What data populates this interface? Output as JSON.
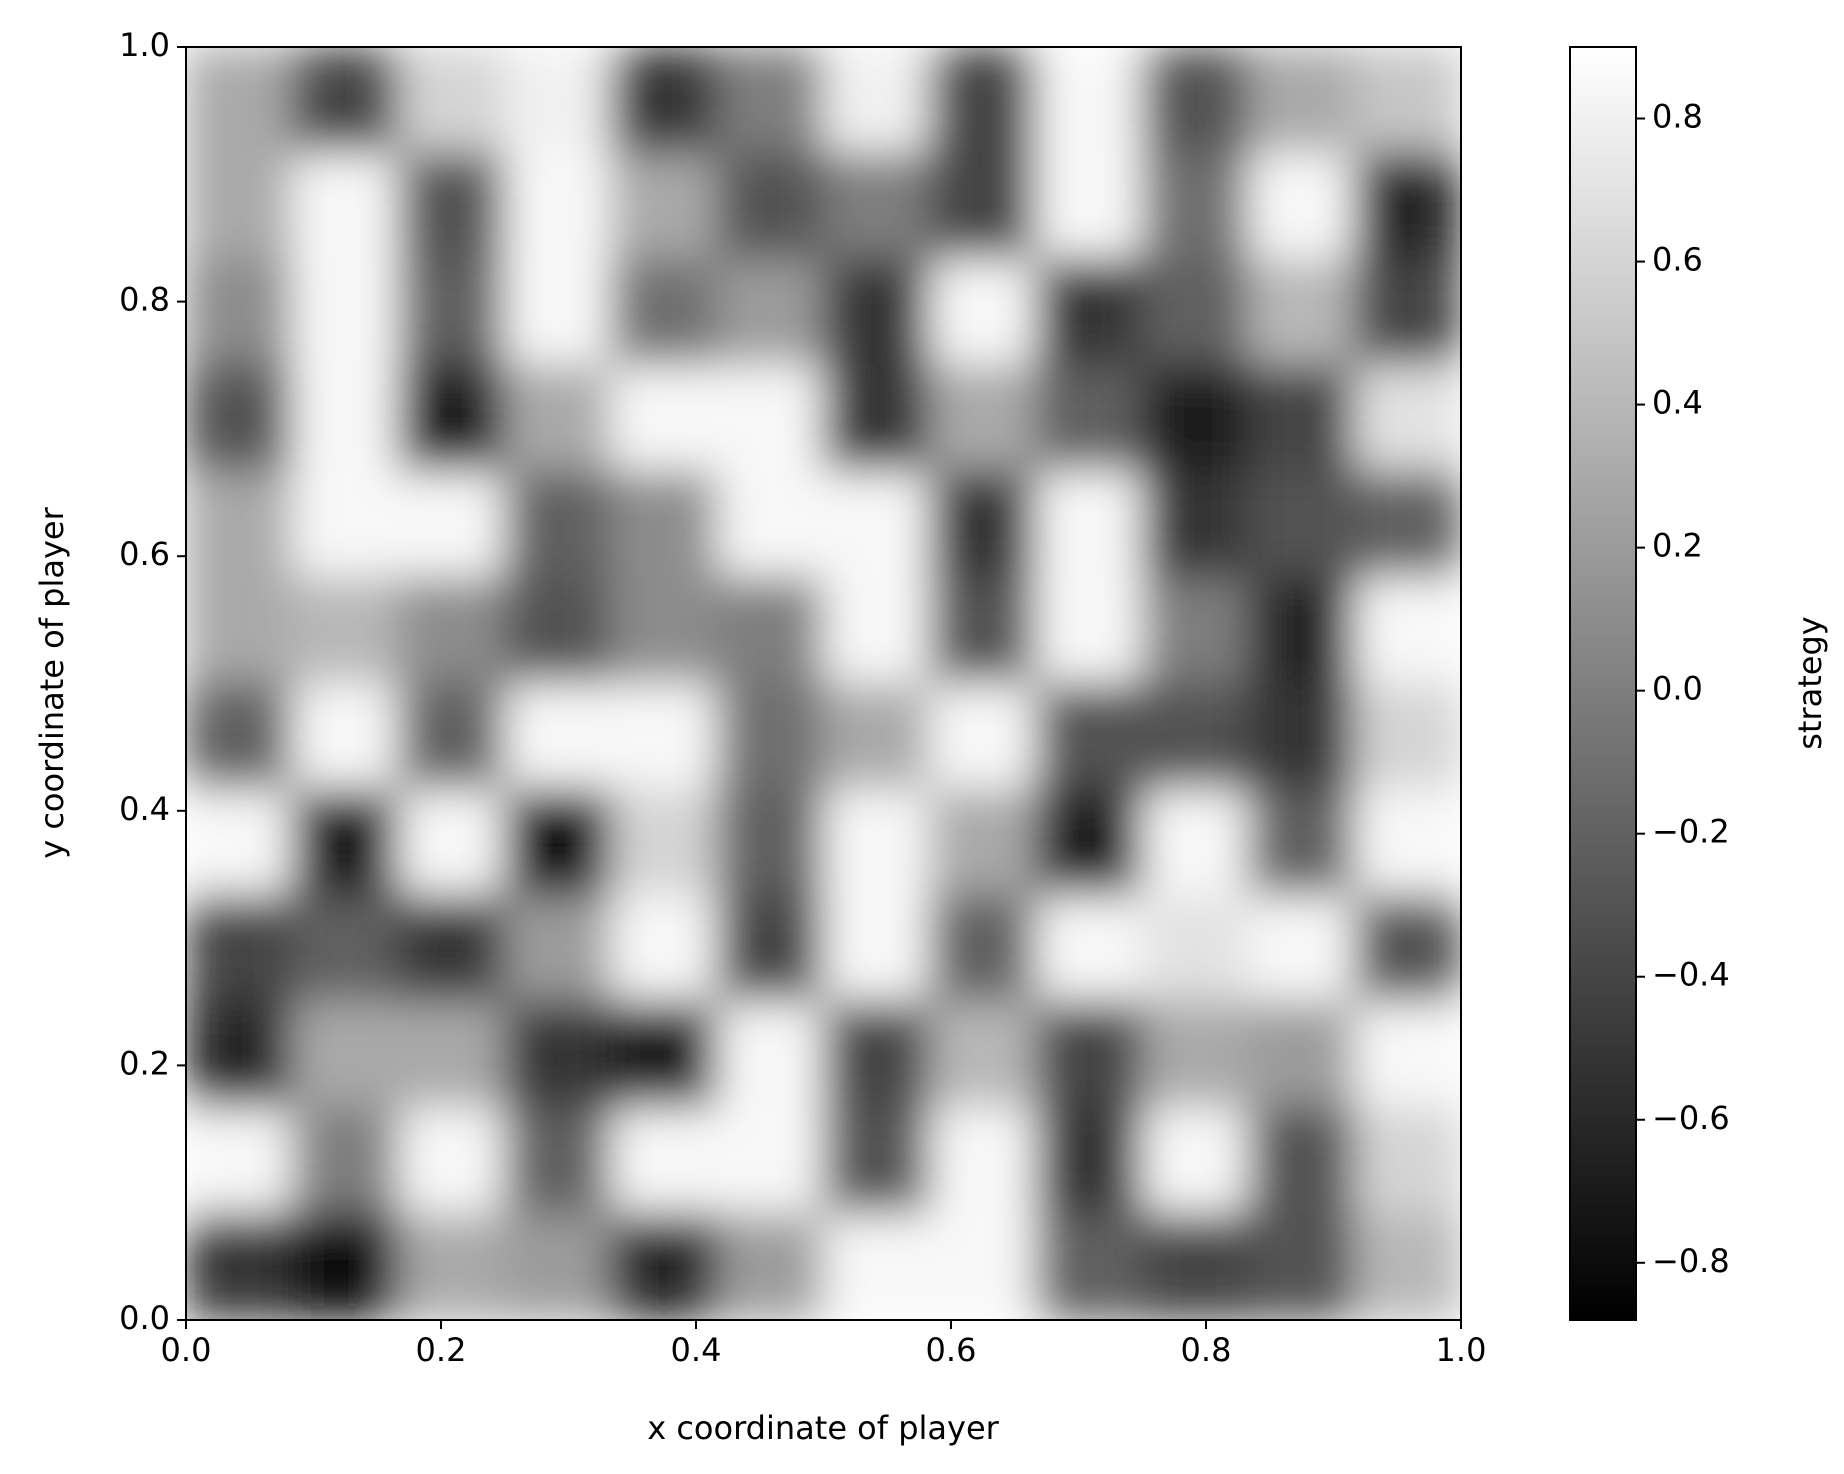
{
  "chart_data": {
    "type": "heatmap",
    "xlabel": "x coordinate of player",
    "ylabel": "y coordinate of player",
    "colorbar_label": "strategy",
    "colormap": "gray",
    "xlim": [
      0,
      1
    ],
    "ylim": [
      0,
      1
    ],
    "xticks": [
      {
        "value": 0,
        "label": "0.0"
      },
      0.2,
      0.4,
      0.6,
      0.8,
      {
        "value": 1,
        "label": "1.0"
      }
    ],
    "yticks": [
      {
        "value": 0,
        "label": "0.0"
      },
      0.2,
      0.4,
      0.6,
      0.8,
      {
        "value": 1,
        "label": "1.0"
      }
    ],
    "clim": [
      -0.88,
      0.9
    ],
    "cticks": [
      {
        "value": -0.8,
        "label": "−0.8"
      },
      {
        "value": -0.6,
        "label": "−0.6"
      },
      {
        "value": -0.4,
        "label": "−0.4"
      },
      {
        "value": -0.2,
        "label": "−0.2"
      },
      {
        "value": 0,
        "label": "0.0"
      },
      0.2,
      0.4,
      0.6,
      0.8
    ],
    "z": [
      [
        0.3,
        -0.4,
        0.6,
        0.8,
        -0.5,
        0.0,
        0.8,
        -0.4,
        0.85,
        -0.3,
        0.3,
        0.5
      ],
      [
        0.3,
        0.85,
        -0.3,
        0.85,
        0.3,
        -0.3,
        0.0,
        -0.4,
        0.85,
        -0.1,
        0.85,
        -0.6
      ],
      [
        0.1,
        0.85,
        -0.2,
        0.85,
        -0.1,
        0.2,
        -0.5,
        0.85,
        -0.5,
        -0.2,
        0.4,
        -0.4
      ],
      [
        -0.3,
        0.85,
        -0.7,
        0.3,
        0.85,
        0.85,
        -0.5,
        0.3,
        -0.2,
        -0.7,
        -0.4,
        0.7
      ],
      [
        0.3,
        0.85,
        0.85,
        -0.2,
        0.1,
        0.85,
        0.85,
        -0.5,
        0.85,
        -0.5,
        -0.3,
        -0.2
      ],
      [
        0.3,
        0.4,
        0.1,
        -0.3,
        0.1,
        0.0,
        0.85,
        -0.3,
        0.85,
        0.0,
        -0.6,
        0.85
      ],
      [
        -0.2,
        0.85,
        -0.2,
        0.85,
        0.85,
        -0.1,
        0.3,
        0.85,
        -0.3,
        -0.3,
        -0.5,
        0.6
      ],
      [
        0.85,
        -0.7,
        0.85,
        -0.8,
        0.6,
        -0.2,
        0.85,
        0.3,
        -0.7,
        0.85,
        -0.2,
        0.85
      ],
      [
        -0.4,
        -0.2,
        -0.5,
        0.2,
        0.85,
        -0.4,
        0.85,
        -0.2,
        0.85,
        0.7,
        0.85,
        -0.3
      ],
      [
        -0.6,
        0.3,
        0.3,
        -0.5,
        -0.7,
        0.85,
        -0.4,
        0.4,
        -0.4,
        0.3,
        0.2,
        0.85
      ],
      [
        0.85,
        0.0,
        0.85,
        -0.2,
        0.85,
        0.85,
        -0.3,
        0.85,
        -0.5,
        0.85,
        -0.3,
        0.6
      ],
      [
        -0.5,
        -0.8,
        0.3,
        0.2,
        -0.6,
        0.2,
        0.85,
        0.85,
        -0.2,
        -0.4,
        -0.3,
        0.4
      ]
    ]
  }
}
